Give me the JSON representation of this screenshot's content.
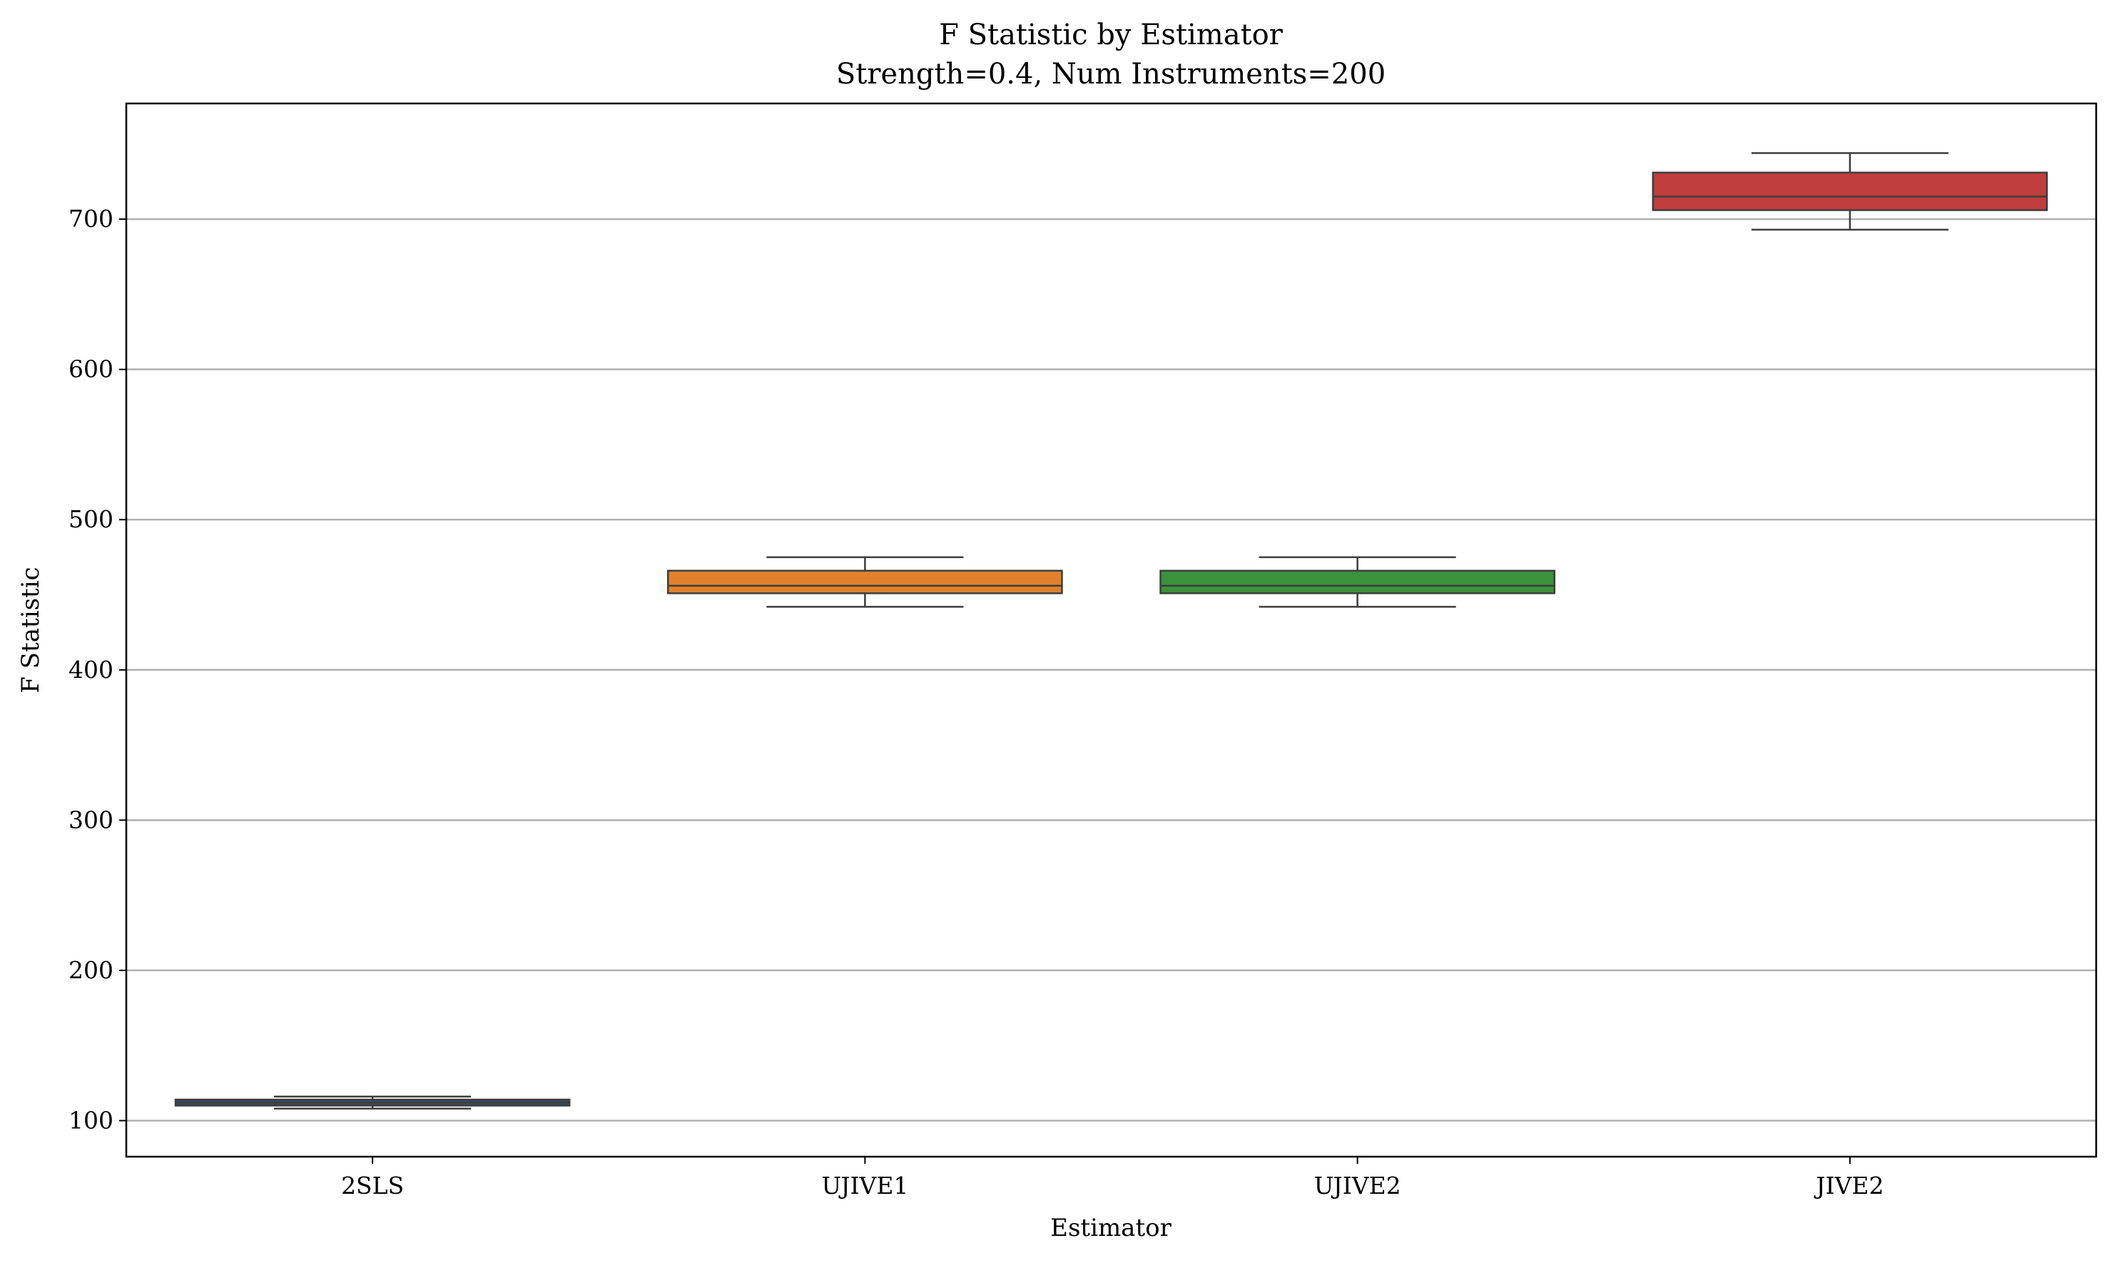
{
  "chart_data": {
    "type": "box",
    "title": "F Statistic by Estimator",
    "subtitle": "Strength=0.4, Num Instruments=200",
    "xlabel": "Estimator",
    "ylabel": "F Statistic",
    "categories": [
      "2SLS",
      "UJIVE1",
      "UJIVE2",
      "JIVE2"
    ],
    "ylim": [
      76,
      777
    ],
    "yticks": [
      100,
      200,
      300,
      400,
      500,
      600,
      700
    ],
    "grid": "horizontal",
    "boxes": [
      {
        "category": "2SLS",
        "whisker_low": 108,
        "q1": 110,
        "median": 112,
        "q3": 114,
        "whisker_high": 116,
        "color": "#3a4a66"
      },
      {
        "category": "UJIVE1",
        "whisker_low": 442,
        "q1": 451,
        "median": 456,
        "q3": 466,
        "whisker_high": 475,
        "color": "#e1812c"
      },
      {
        "category": "UJIVE2",
        "whisker_low": 442,
        "q1": 451,
        "median": 456,
        "q3": 466,
        "whisker_high": 475,
        "color": "#3a923a"
      },
      {
        "category": "JIVE2",
        "whisker_low": 693,
        "q1": 706,
        "median": 715,
        "q3": 731,
        "whisker_high": 744,
        "color": "#c03d3e"
      }
    ]
  }
}
